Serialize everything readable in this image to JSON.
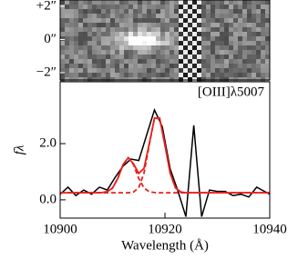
{
  "chart_data": [
    {
      "type": "image",
      "ylim": [
        -2.44,
        2.38
      ],
      "yticks": [
        {
          "value": 2,
          "label": "+2″"
        },
        {
          "value": 0,
          "label": "0″"
        },
        {
          "value": -2,
          "label": "−2″"
        }
      ]
    },
    {
      "type": "line",
      "annotation": "[OIII]λ5007",
      "xlabel": "Wavelength (Å)",
      "ylabel": "fλ",
      "xlim": [
        10900,
        10940
      ],
      "xticks": [
        10900,
        10920,
        10940
      ],
      "ylim": [
        -0.65,
        4.2
      ],
      "yticks": [
        {
          "value": 0,
          "label": "0.0"
        },
        {
          "value": 2,
          "label": "2.0"
        }
      ],
      "series": [
        {
          "color": "#000000",
          "style": "solid",
          "x": [
            10900,
            10901.5,
            10903,
            10904.5,
            10906,
            10907.5,
            10909,
            10910.5,
            10912,
            10913.5,
            10915,
            10916.5,
            10918,
            10919.5,
            10921,
            10922.5,
            10924,
            10925.5,
            10927,
            10928.5,
            10930,
            10931.5,
            10933,
            10934.5,
            10936,
            10937.5,
            10939,
            10940
          ],
          "values": [
            0.2,
            0.45,
            0.15,
            0.35,
            0.2,
            0.45,
            0.35,
            0.8,
            1.2,
            1.45,
            1.4,
            2.3,
            3.2,
            2.6,
            1.1,
            0.3,
            -0.6,
            2.65,
            -0.6,
            0.35,
            0.3,
            0.3,
            0.15,
            0.2,
            0.1,
            0.45,
            0.3,
            0.2
          ]
        },
        {
          "color": "#e8201e",
          "style": "dashed",
          "x": [
            10900,
            10906,
            10907,
            10908,
            10909,
            10910,
            10911,
            10912,
            10913,
            10914,
            10915,
            10916,
            10917,
            10918,
            10919,
            10920,
            10921,
            10922,
            10923,
            10924,
            10925,
            10940
          ],
          "values": [
            0.25,
            0.25,
            0.25,
            0.26,
            0.29,
            0.42,
            0.76,
            1.25,
            1.5,
            1.25,
            0.76,
            0.42,
            0.29,
            0.26,
            0.25,
            0.25,
            0.25,
            0.25,
            0.25,
            0.25,
            0.25,
            0.25
          ]
        },
        {
          "color": "#e8201e",
          "style": "dashed",
          "x": [
            10900,
            10906,
            10907,
            10908,
            10909,
            10910,
            10911,
            10912,
            10913,
            10914,
            10915,
            10916,
            10917,
            10918,
            10919,
            10920,
            10921,
            10922,
            10923,
            10924,
            10925,
            10940
          ],
          "values": [
            0.25,
            0.25,
            0.25,
            0.25,
            0.25,
            0.25,
            0.25,
            0.25,
            0.25,
            0.28,
            0.43,
            0.95,
            1.95,
            2.9,
            2.9,
            1.95,
            0.95,
            0.43,
            0.28,
            0.25,
            0.25,
            0.25
          ]
        },
        {
          "color": "#e8201e",
          "style": "solid",
          "x": [
            10900,
            10906,
            10907,
            10908,
            10909,
            10910,
            10911,
            10912,
            10913,
            10914,
            10915,
            10916,
            10917,
            10918,
            10919,
            10920,
            10921,
            10922,
            10923,
            10924,
            10925,
            10940
          ],
          "values": [
            0.25,
            0.25,
            0.25,
            0.26,
            0.29,
            0.42,
            0.76,
            1.25,
            1.5,
            1.28,
            0.94,
            1.12,
            1.99,
            2.91,
            2.9,
            1.95,
            0.95,
            0.43,
            0.28,
            0.25,
            0.25,
            0.25
          ]
        }
      ]
    }
  ]
}
